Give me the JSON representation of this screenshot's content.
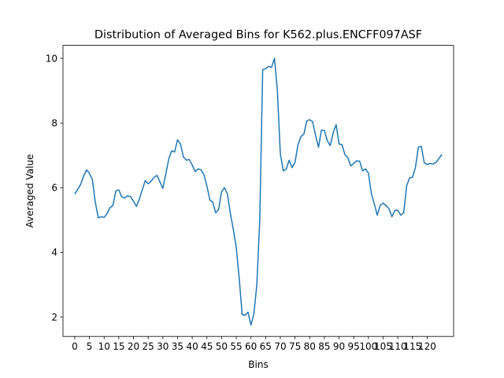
{
  "chart_data": {
    "type": "line",
    "title": "Distribution of Averaged Bins for K562.plus.ENCFF097ASF",
    "xlabel": "Bins",
    "ylabel": "Averaged Value",
    "xlim": [
      -4,
      129
    ],
    "ylim": [
      1.4,
      10.4
    ],
    "xticks": [
      0,
      5,
      10,
      15,
      20,
      25,
      30,
      35,
      40,
      45,
      50,
      55,
      60,
      65,
      70,
      75,
      80,
      85,
      90,
      95,
      100,
      105,
      110,
      115,
      120
    ],
    "yticks": [
      2,
      4,
      6,
      8,
      10
    ],
    "grid": false,
    "series": [
      {
        "color": "#1f77b4",
        "x": [
          0,
          1,
          2,
          3,
          4,
          5,
          6,
          7,
          8,
          9,
          10,
          11,
          12,
          13,
          14,
          15,
          16,
          17,
          18,
          19,
          20,
          21,
          22,
          23,
          24,
          25,
          26,
          27,
          28,
          29,
          30,
          31,
          32,
          33,
          34,
          35,
          36,
          37,
          38,
          39,
          40,
          41,
          42,
          43,
          44,
          45,
          46,
          47,
          48,
          49,
          50,
          51,
          52,
          53,
          54,
          55,
          56,
          57,
          58,
          59,
          60,
          61,
          62,
          63,
          64,
          65,
          66,
          67,
          68,
          69,
          70,
          71,
          72,
          73,
          74,
          75,
          76,
          77,
          78,
          79,
          80,
          81,
          82,
          83,
          84,
          85,
          86,
          87,
          88,
          89,
          90,
          91,
          92,
          93,
          94,
          95,
          96,
          97,
          98,
          99,
          100,
          101,
          102,
          103,
          104,
          105,
          106,
          107,
          108,
          109,
          110,
          111,
          112,
          113,
          114,
          115,
          116,
          117,
          118,
          119,
          120,
          121,
          122,
          123,
          124,
          125
        ],
        "values": [
          5.8,
          5.95,
          6.1,
          6.35,
          6.55,
          6.45,
          6.25,
          5.55,
          5.07,
          5.1,
          5.08,
          5.2,
          5.38,
          5.45,
          5.9,
          5.93,
          5.72,
          5.68,
          5.75,
          5.72,
          5.58,
          5.42,
          5.65,
          5.93,
          6.22,
          6.12,
          6.2,
          6.32,
          6.38,
          6.18,
          5.98,
          6.42,
          6.88,
          7.14,
          7.1,
          7.48,
          7.35,
          6.95,
          6.85,
          6.87,
          6.7,
          6.5,
          6.58,
          6.55,
          6.4,
          6.05,
          5.62,
          5.55,
          5.22,
          5.33,
          5.88,
          6.0,
          5.8,
          5.2,
          4.7,
          4.15,
          3.2,
          2.08,
          2.05,
          2.15,
          1.75,
          2.1,
          3.0,
          5.0,
          9.65,
          9.68,
          9.75,
          9.72,
          10.0,
          9.0,
          7.05,
          6.52,
          6.57,
          6.85,
          6.62,
          6.78,
          7.32,
          7.58,
          7.65,
          8.06,
          8.1,
          8.04,
          7.62,
          7.25,
          7.78,
          7.77,
          7.45,
          7.3,
          7.7,
          7.95,
          7.35,
          7.33,
          7.02,
          6.92,
          6.67,
          6.75,
          6.83,
          6.82,
          6.52,
          6.58,
          6.45,
          5.82,
          5.5,
          5.15,
          5.45,
          5.52,
          5.45,
          5.35,
          5.1,
          5.3,
          5.3,
          5.15,
          5.22,
          6.05,
          6.3,
          6.32,
          6.62,
          7.25,
          7.28,
          6.77,
          6.72,
          6.75,
          6.73,
          6.78,
          6.9,
          7.03
        ]
      }
    ]
  }
}
